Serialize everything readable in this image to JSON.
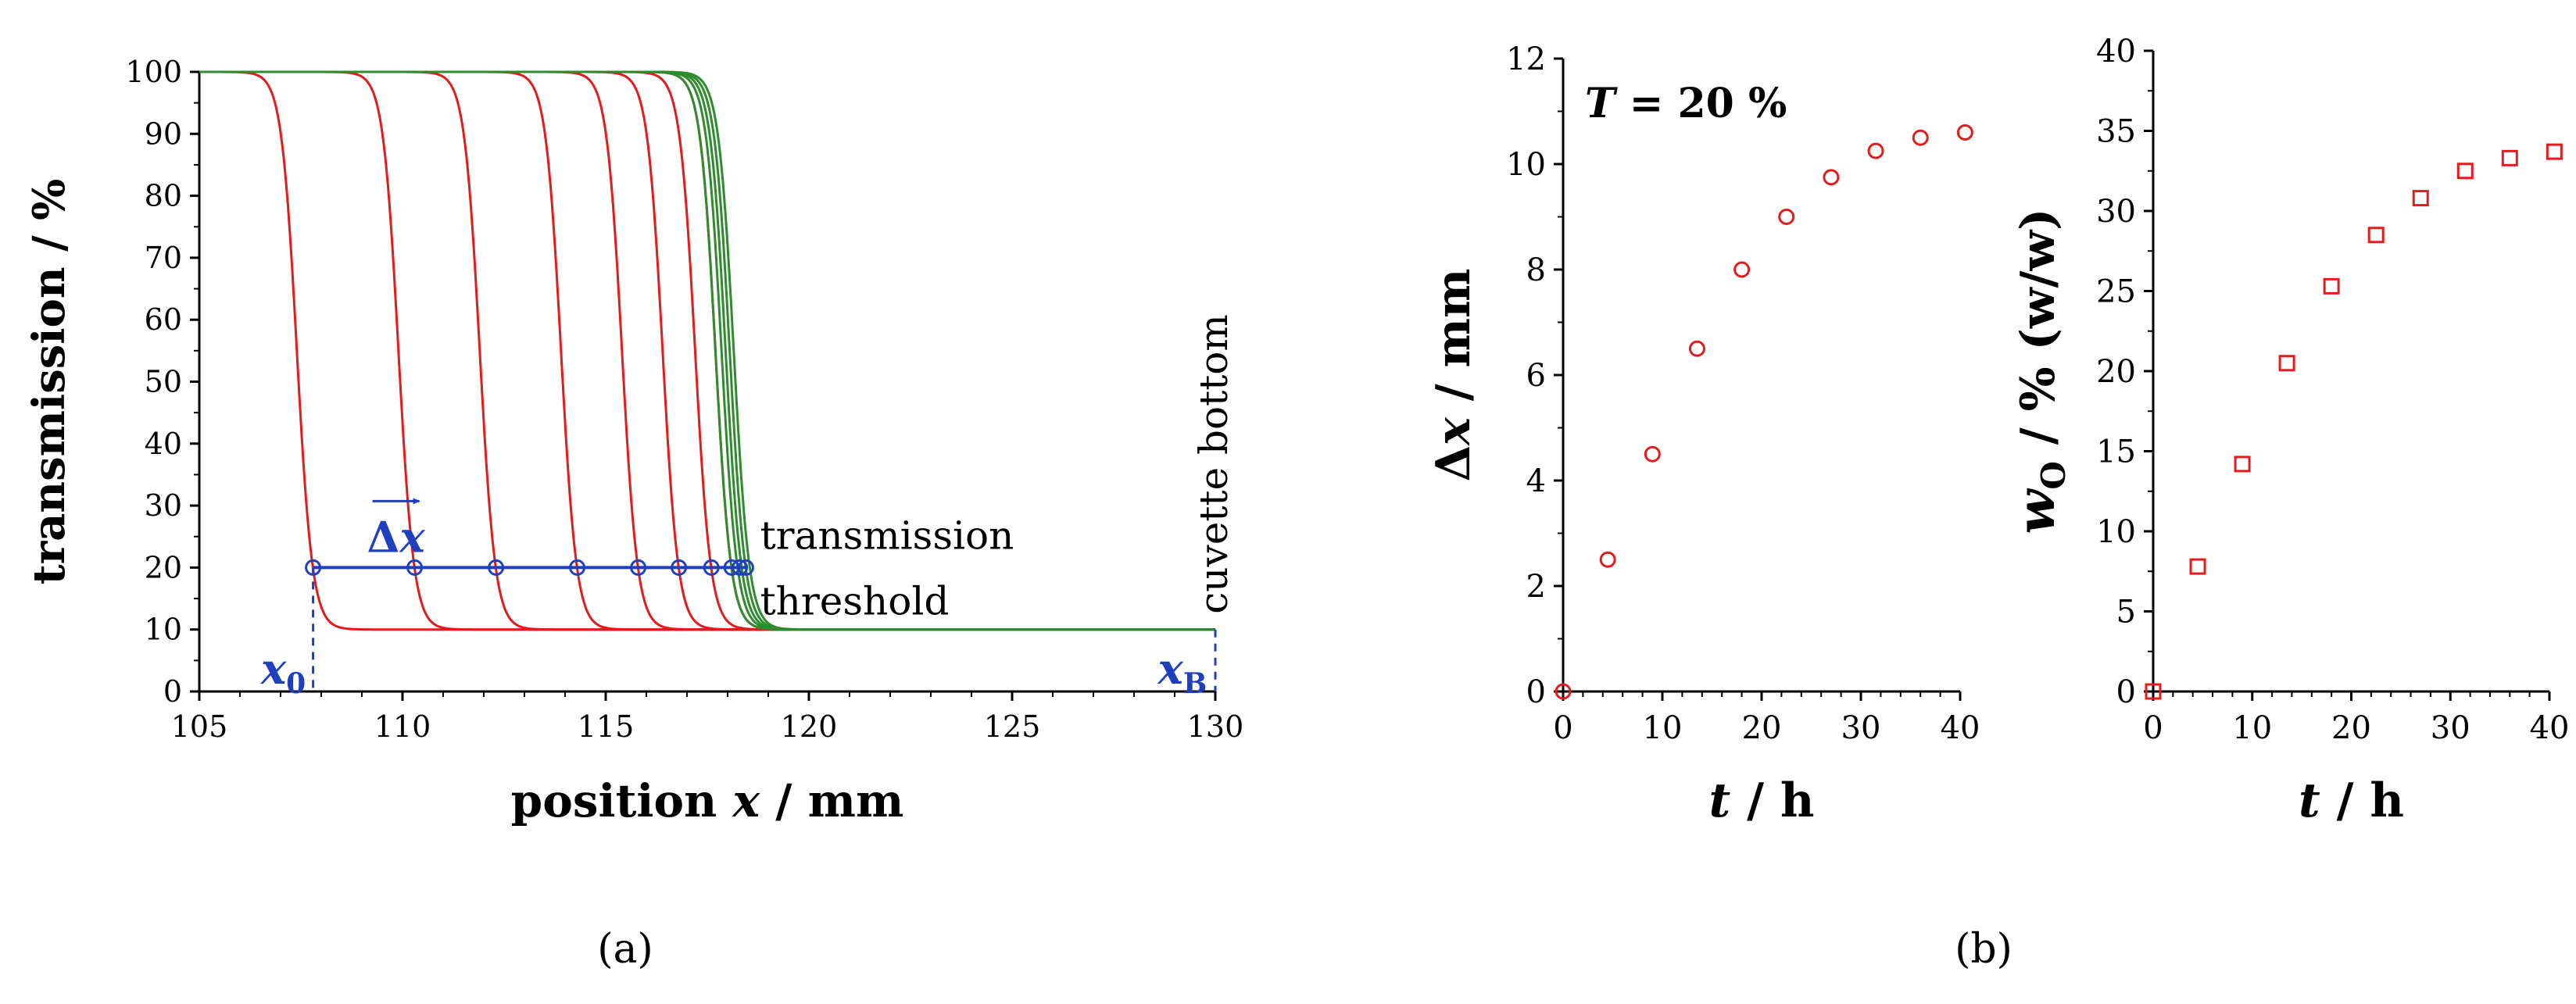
{
  "panel_labels": {
    "a": "(a)",
    "b": "(b)"
  },
  "colors": {
    "axis": "#000000",
    "red": "#e41a1c",
    "green": "#2e8b2e",
    "blue": "#1f3fbf"
  },
  "chart_data": [
    {
      "id": "a",
      "type": "line",
      "title": "",
      "xlabel": "position x / mm",
      "xlabel_plain": "position ",
      "xlabel_var": "x",
      "xlabel_unit": " / mm",
      "ylabel": "transmission / %",
      "xlim": [
        105,
        130
      ],
      "ylim": [
        0,
        100
      ],
      "xticks": [
        105,
        110,
        115,
        120,
        125,
        130
      ],
      "yticks": [
        0,
        10,
        20,
        30,
        40,
        50,
        60,
        70,
        80,
        90,
        100
      ],
      "baseline": 10,
      "plateau": 100,
      "series": [
        {
          "name": "red",
          "color": "red",
          "edges": [
            107.4,
            109.9,
            111.9,
            113.9,
            115.4,
            116.4,
            117.2,
            117.7
          ]
        },
        {
          "name": "green",
          "color": "green",
          "edges": [
            117.7,
            117.85,
            117.95,
            118.05,
            118.15
          ]
        }
      ],
      "threshold": {
        "value": 20,
        "points": [
          107.8,
          110.3,
          112.3,
          114.3,
          115.8,
          116.8,
          117.6,
          118.1,
          118.3,
          118.45
        ],
        "label_line1": "transmission",
        "label_line2": "threshold",
        "arrow_label": "Δx"
      },
      "x0": {
        "value": 107.8,
        "label": "x",
        "sub": "0"
      },
      "xB": {
        "value": 130,
        "label": "x",
        "sub": "B"
      },
      "cuvette_label": "cuvette bottom"
    },
    {
      "id": "b1",
      "type": "scatter",
      "title": "",
      "annotation_var": "T",
      "annotation_rest": " = 20 %",
      "xlabel": "t / h",
      "xlabel_var": "t",
      "xlabel_unit": " / h",
      "ylabel": "Δx / mm",
      "ylabel_pre": "Δ",
      "ylabel_var": "x",
      "ylabel_unit": " / mm",
      "xlim": [
        0,
        40
      ],
      "ylim": [
        0,
        12
      ],
      "xticks": [
        0,
        10,
        20,
        30,
        40
      ],
      "yticks": [
        0,
        2,
        4,
        6,
        8,
        10,
        12
      ],
      "x": [
        0,
        4.5,
        9,
        13.5,
        18,
        22.5,
        27,
        31.5,
        36,
        40.5
      ],
      "y": [
        0,
        2.5,
        4.5,
        6.5,
        8.0,
        9.0,
        9.75,
        10.25,
        10.5,
        10.6
      ],
      "marker": "circle",
      "color": "red"
    },
    {
      "id": "b2",
      "type": "scatter",
      "title": "",
      "xlabel": "t / h",
      "xlabel_var": "t",
      "xlabel_unit": " / h",
      "ylabel": "wO / % (w/w)",
      "ylabel_var": "w",
      "ylabel_sub": "O",
      "ylabel_unit": " / % (w/w)",
      "xlim": [
        0,
        40
      ],
      "ylim": [
        0,
        40
      ],
      "xticks": [
        0,
        10,
        20,
        30,
        40
      ],
      "yticks": [
        0,
        5,
        10,
        15,
        20,
        25,
        30,
        35,
        40
      ],
      "x": [
        0,
        4.5,
        9,
        13.5,
        18,
        22.5,
        27,
        31.5,
        36,
        40.5
      ],
      "y": [
        0,
        7.8,
        14.2,
        20.5,
        25.3,
        28.5,
        30.8,
        32.5,
        33.3,
        33.7
      ],
      "marker": "square",
      "color": "red"
    }
  ]
}
